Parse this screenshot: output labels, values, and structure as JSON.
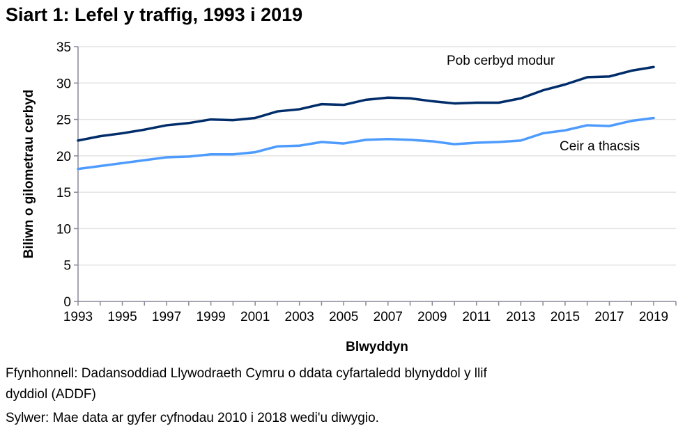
{
  "chart_data": {
    "type": "line",
    "title": "Siart 1: Lefel y traffig, 1993 i 2019",
    "xlabel": "Blwyddyn",
    "ylabel": "Biliwn o gilometrau cerbyd",
    "ylim": [
      0,
      35
    ],
    "yticks": [
      0,
      5,
      10,
      15,
      20,
      25,
      30,
      35
    ],
    "xticks": [
      1993,
      1995,
      1997,
      1999,
      2001,
      2003,
      2005,
      2007,
      2009,
      2011,
      2013,
      2015,
      2017,
      2019
    ],
    "grid": true,
    "x": [
      1993,
      1994,
      1995,
      1996,
      1997,
      1998,
      1999,
      2000,
      2001,
      2002,
      2003,
      2004,
      2005,
      2006,
      2007,
      2008,
      2009,
      2010,
      2011,
      2012,
      2013,
      2014,
      2015,
      2016,
      2017,
      2018,
      2019
    ],
    "series": [
      {
        "name": "Pob cerbyd modur",
        "color": "#002D6A",
        "values": [
          22.1,
          22.7,
          23.1,
          23.6,
          24.2,
          24.5,
          25.0,
          24.9,
          25.2,
          26.1,
          26.4,
          27.1,
          27.0,
          27.7,
          28.0,
          27.9,
          27.5,
          27.2,
          27.3,
          27.3,
          27.9,
          29.0,
          29.8,
          30.8,
          30.9,
          31.7,
          32.2
        ]
      },
      {
        "name": "Ceir a thacsis",
        "color": "#4E9BFF",
        "values": [
          18.2,
          18.6,
          19.0,
          19.4,
          19.8,
          19.9,
          20.2,
          20.2,
          20.5,
          21.3,
          21.4,
          21.9,
          21.7,
          22.2,
          22.3,
          22.2,
          22.0,
          21.6,
          21.8,
          21.9,
          22.1,
          23.1,
          23.5,
          24.2,
          24.1,
          24.8,
          25.2
        ]
      }
    ]
  },
  "notes": {
    "source_line1": "Ffynhonnell: Dadansoddiad Llywodraeth Cymru o ddata cyfartaledd blynyddol y llif",
    "source_line2": "dyddiol (ADDF)",
    "remark": "Sylwer: Mae data ar gyfer cyfnodau 2010 i 2018 wedi'u diwygio."
  }
}
